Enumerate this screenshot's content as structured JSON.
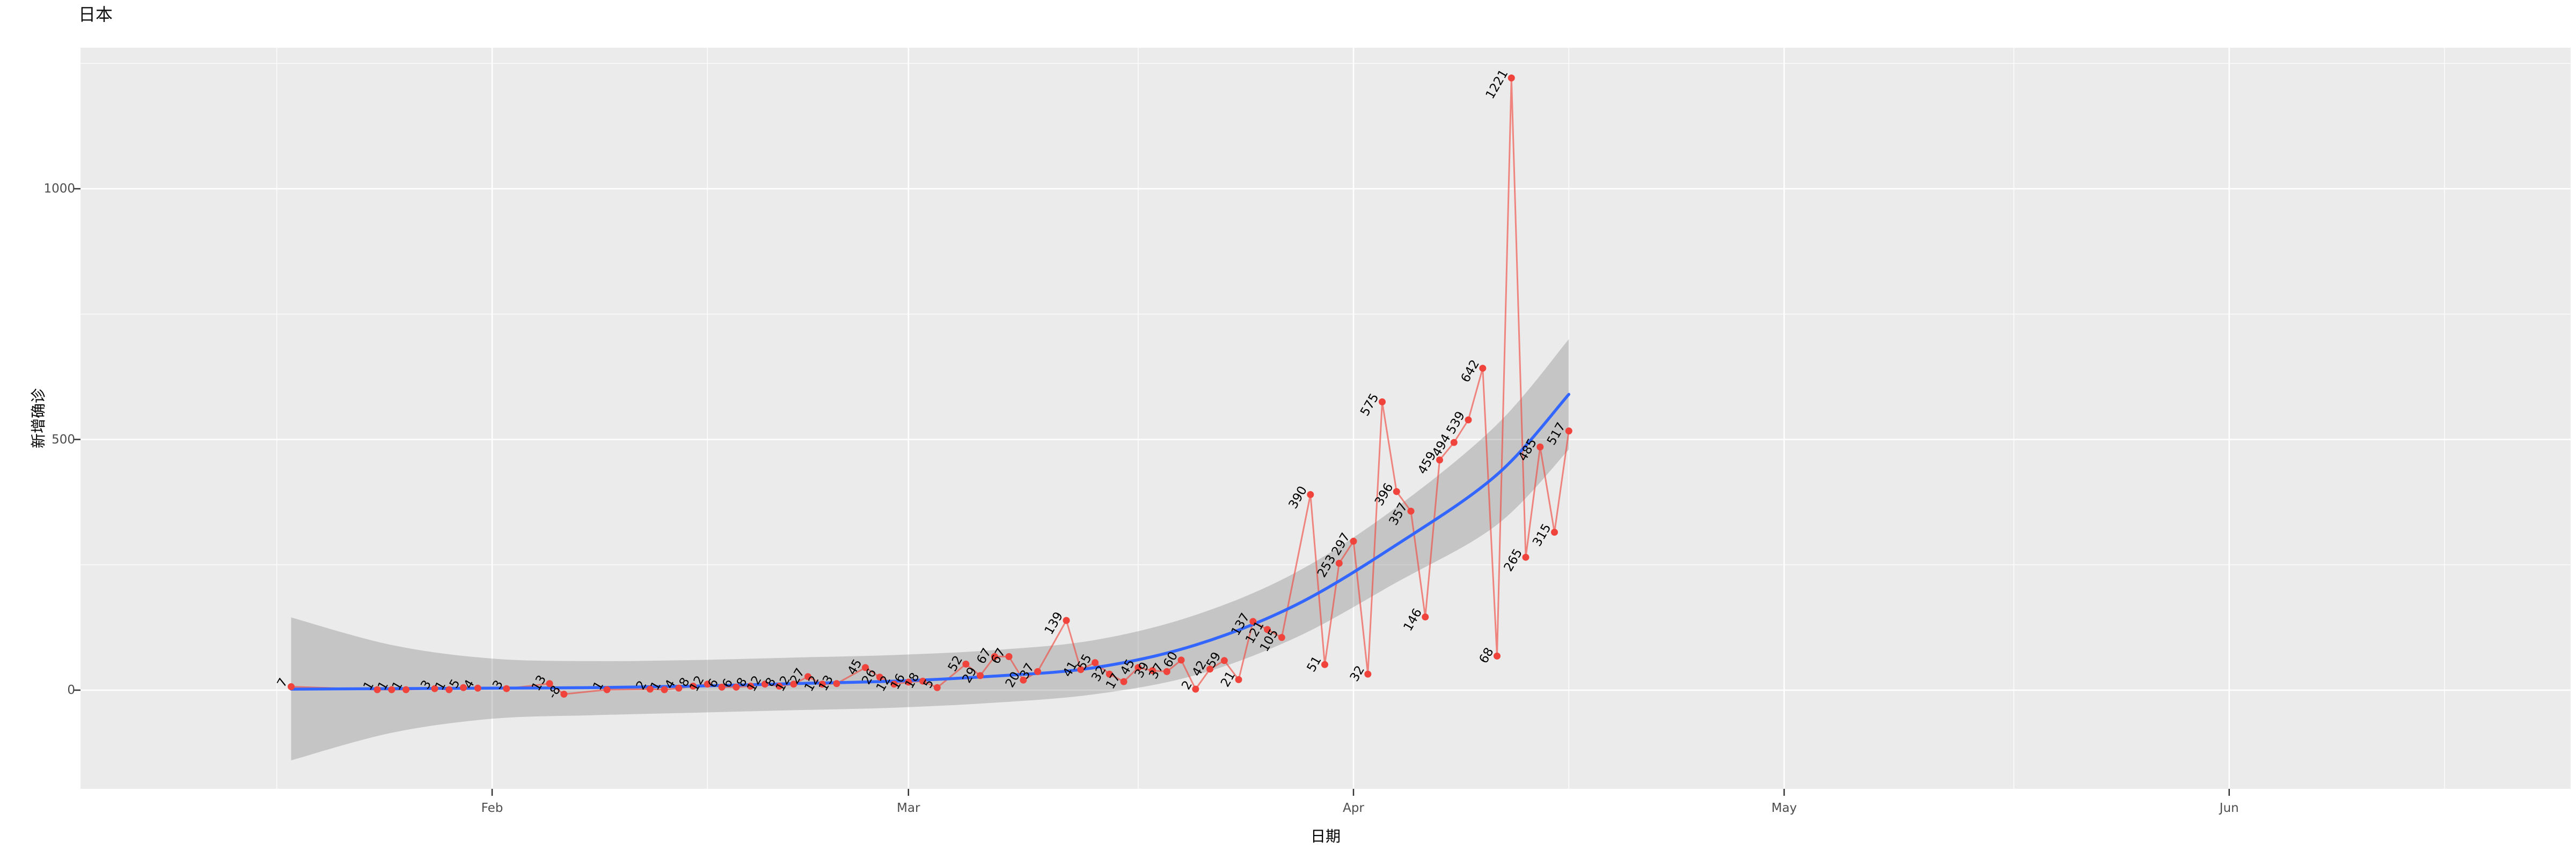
{
  "title": "日本",
  "axes": {
    "x_label": "日期",
    "y_label": "新增确诊",
    "x_tick_labels": [
      "Feb",
      "Mar",
      "Apr",
      "May",
      "Jun"
    ],
    "y_tick_labels": [
      "0",
      "500",
      "1000"
    ]
  },
  "colors": {
    "panel_background": "#EBEBEB",
    "gridline": "#FFFFFF",
    "point_red": "#F0433C",
    "line_red": "rgba(240,70,58,0.62)",
    "smooth_blue": "#3366FF",
    "ribbon_grey": "rgba(100,100,100,0.28)",
    "tick_text_grey": "#4D4D4D",
    "label_black": "#000000"
  },
  "chart_data": {
    "type": "line",
    "title": "日本",
    "xlabel": "日期",
    "ylabel": "新增确诊",
    "x_tick_labels": [
      "Feb",
      "Mar",
      "Apr",
      "May",
      "Jun"
    ],
    "y_ticks": [
      0,
      500,
      1000
    ],
    "y_minor_ticks": [
      250,
      750,
      1250
    ],
    "ylim": [
      -200,
      1285
    ],
    "grid": "white major+minor on grey panel",
    "legend": "none",
    "series": [
      {
        "name": "daily_new_confirmed",
        "style": "red line with points and rotated value labels",
        "dates": [
          "2020-01-18",
          "2020-01-24",
          "2020-01-25",
          "2020-01-26",
          "2020-01-28",
          "2020-01-29",
          "2020-01-30",
          "2020-01-31",
          "2020-02-02",
          "2020-02-05",
          "2020-02-06",
          "2020-02-09",
          "2020-02-12",
          "2020-02-13",
          "2020-02-14",
          "2020-02-15",
          "2020-02-16",
          "2020-02-17",
          "2020-02-18",
          "2020-02-19",
          "2020-02-20",
          "2020-02-21",
          "2020-02-22",
          "2020-02-23",
          "2020-02-24",
          "2020-02-25",
          "2020-02-27",
          "2020-02-28",
          "2020-02-29",
          "2020-03-01",
          "2020-03-02",
          "2020-03-03",
          "2020-03-05",
          "2020-03-06",
          "2020-03-07",
          "2020-03-08",
          "2020-03-09",
          "2020-03-10",
          "2020-03-12",
          "2020-03-13",
          "2020-03-14",
          "2020-03-15",
          "2020-03-16",
          "2020-03-17",
          "2020-03-18",
          "2020-03-19",
          "2020-03-20",
          "2020-03-21",
          "2020-03-22",
          "2020-03-23",
          "2020-03-24",
          "2020-03-25",
          "2020-03-26",
          "2020-03-27",
          "2020-03-29",
          "2020-03-30",
          "2020-03-31",
          "2020-04-01",
          "2020-04-02",
          "2020-04-03",
          "2020-04-04",
          "2020-04-05",
          "2020-04-06",
          "2020-04-07",
          "2020-04-08",
          "2020-04-09",
          "2020-04-10",
          "2020-04-11",
          "2020-04-12",
          "2020-04-13",
          "2020-04-14",
          "2020-04-15",
          "2020-04-16"
        ],
        "values": [
          7,
          1,
          1,
          1,
          3,
          1,
          5,
          4,
          3,
          13,
          -8,
          1,
          2,
          1,
          4,
          8,
          12,
          6,
          6,
          8,
          12,
          8,
          12,
          27,
          12,
          13,
          45,
          26,
          12,
          16,
          18,
          5,
          52,
          29,
          67,
          67,
          20,
          37,
          139,
          41,
          55,
          32,
          17,
          45,
          39,
          37,
          60,
          2,
          42,
          59,
          21,
          137,
          121,
          105,
          390,
          51,
          253,
          297,
          32,
          575,
          396,
          357,
          146,
          459,
          494,
          539,
          642,
          68,
          1221,
          265,
          485,
          315,
          517
        ]
      },
      {
        "name": "loess_smooth_trend",
        "style": "blue smooth line with grey confidence ribbon",
        "dates": [
          "2020-01-18",
          "2020-01-25",
          "2020-02-01",
          "2020-02-08",
          "2020-02-15",
          "2020-02-22",
          "2020-02-29",
          "2020-03-07",
          "2020-03-14",
          "2020-03-21",
          "2020-03-28",
          "2020-04-04",
          "2020-04-11",
          "2020-04-16"
        ],
        "values": [
          2,
          3,
          4,
          5,
          8,
          13,
          18,
          28,
          45,
          90,
          170,
          290,
          430,
          590
        ],
        "ci_low": [
          -140,
          -85,
          -57,
          -50,
          -45,
          -40,
          -35,
          -25,
          -8,
          30,
          105,
          215,
          330,
          480
        ],
        "ci_high": [
          145,
          90,
          63,
          58,
          60,
          65,
          70,
          80,
          100,
          150,
          235,
          365,
          530,
          700
        ]
      }
    ]
  }
}
